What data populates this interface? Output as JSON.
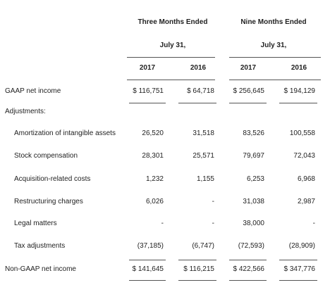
{
  "header": {
    "groups": [
      {
        "title": "Three Months Ended",
        "subtitle": "July 31,"
      },
      {
        "title": "Nine Months Ended",
        "subtitle": "July 31,"
      }
    ],
    "years": [
      "2017",
      "2016",
      "2017",
      "2016"
    ]
  },
  "table": {
    "rows": [
      [
        "GAAP net income",
        "$ 116,751",
        "$  64,718",
        "$ 256,645",
        "$ 194,129"
      ],
      [
        "Adjustments:"
      ],
      [
        "Amortization of intangible assets",
        "26,520",
        "31,518",
        "83,526",
        "100,558"
      ],
      [
        "Stock compensation",
        "28,301",
        "25,571",
        "79,697",
        "72,043"
      ],
      [
        "Acquisition-related costs",
        "1,232",
        "1,155",
        "6,253",
        "6,968"
      ],
      [
        "Restructuring charges",
        "6,026",
        "-",
        "31,038",
        "2,987"
      ],
      [
        "Legal matters",
        "-",
        "-",
        "38,000",
        "-"
      ],
      [
        "Tax adjustments",
        "(37,185)",
        "(6,747)",
        "(72,593)",
        "(28,909)"
      ],
      [
        "Non-GAAP net income",
        "$ 141,645",
        "$ 116,215",
        "$ 422,566",
        "$ 347,776"
      ]
    ]
  }
}
